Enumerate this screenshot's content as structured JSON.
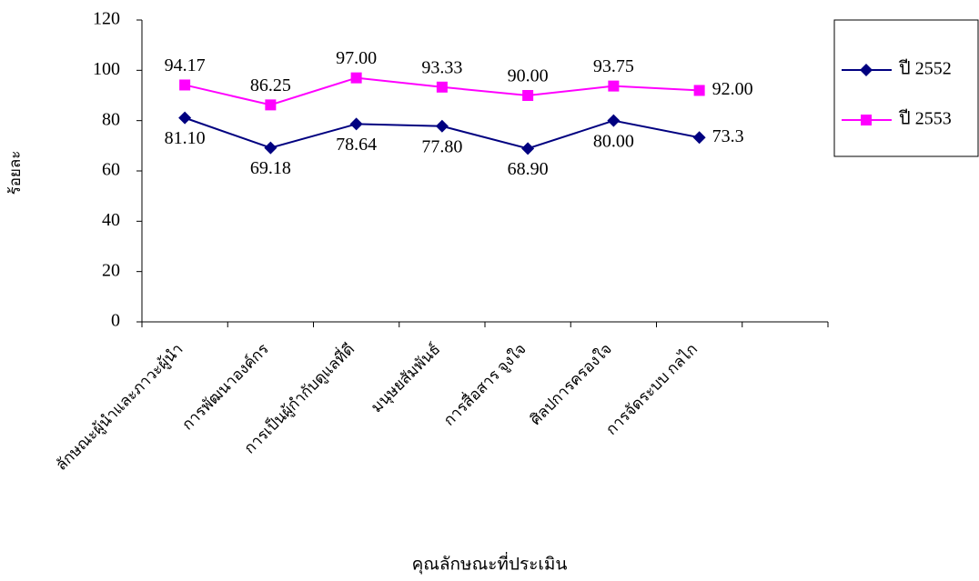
{
  "chart_data": {
    "type": "line",
    "x_label": "คุณลักษณะที่ประเมิน",
    "y_label": "ร้อยละ",
    "categories": [
      "ลักษณะผู้นำและภาวะผู้นำ",
      "การพัฒนาองค์กร",
      "การเป็นผู้กำกับดูแลที่ดี",
      "มนุษยสัมพันธ์",
      "การสื่อสาร จูงใจ",
      "ศิลปการครองใจ",
      "การจัดระบบ กลไก",
      null
    ],
    "series": [
      {
        "name": "ปี 2552",
        "color": "#000080",
        "marker": "diamond",
        "values": [
          81.1,
          69.18,
          78.64,
          77.8,
          68.9,
          80,
          73.3,
          null
        ],
        "value_labels": [
          "81.10",
          "69.18",
          "78.64",
          "77.80",
          "68.90",
          "80.00",
          "73.3",
          null
        ]
      },
      {
        "name": "ปี 2553",
        "color": "#ff00ff",
        "marker": "square",
        "values": [
          94.17,
          86.25,
          97,
          93.33,
          90,
          93.75,
          92,
          null
        ],
        "value_labels": [
          "94.17",
          "86.25",
          "97.00",
          "93.33",
          "90.00",
          "93.75",
          "92.00",
          null
        ]
      }
    ],
    "ylim": [
      0,
      120
    ],
    "yticks": [
      0,
      20,
      40,
      60,
      80,
      100,
      120
    ],
    "legend": "right"
  }
}
